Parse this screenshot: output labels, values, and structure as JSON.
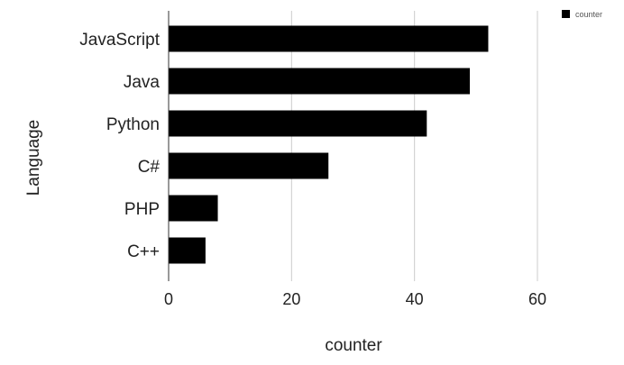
{
  "chart_data": {
    "type": "bar",
    "orientation": "horizontal",
    "categories": [
      "JavaScript",
      "Java",
      "Python",
      "C#",
      "PHP",
      "C++"
    ],
    "series": [
      {
        "name": "counter",
        "values": [
          52,
          49,
          42,
          26,
          8,
          6
        ]
      }
    ],
    "xlabel": "counter",
    "ylabel": "Language",
    "xlim": [
      0,
      60
    ],
    "xticks": [
      "0",
      "20",
      "40",
      "60"
    ],
    "grid": "vertical",
    "legend": {
      "position": "top-right",
      "entries": [
        "counter"
      ]
    },
    "colors": {
      "bar": "#000000",
      "grid": "#cccccc",
      "axis": "#333333"
    }
  }
}
